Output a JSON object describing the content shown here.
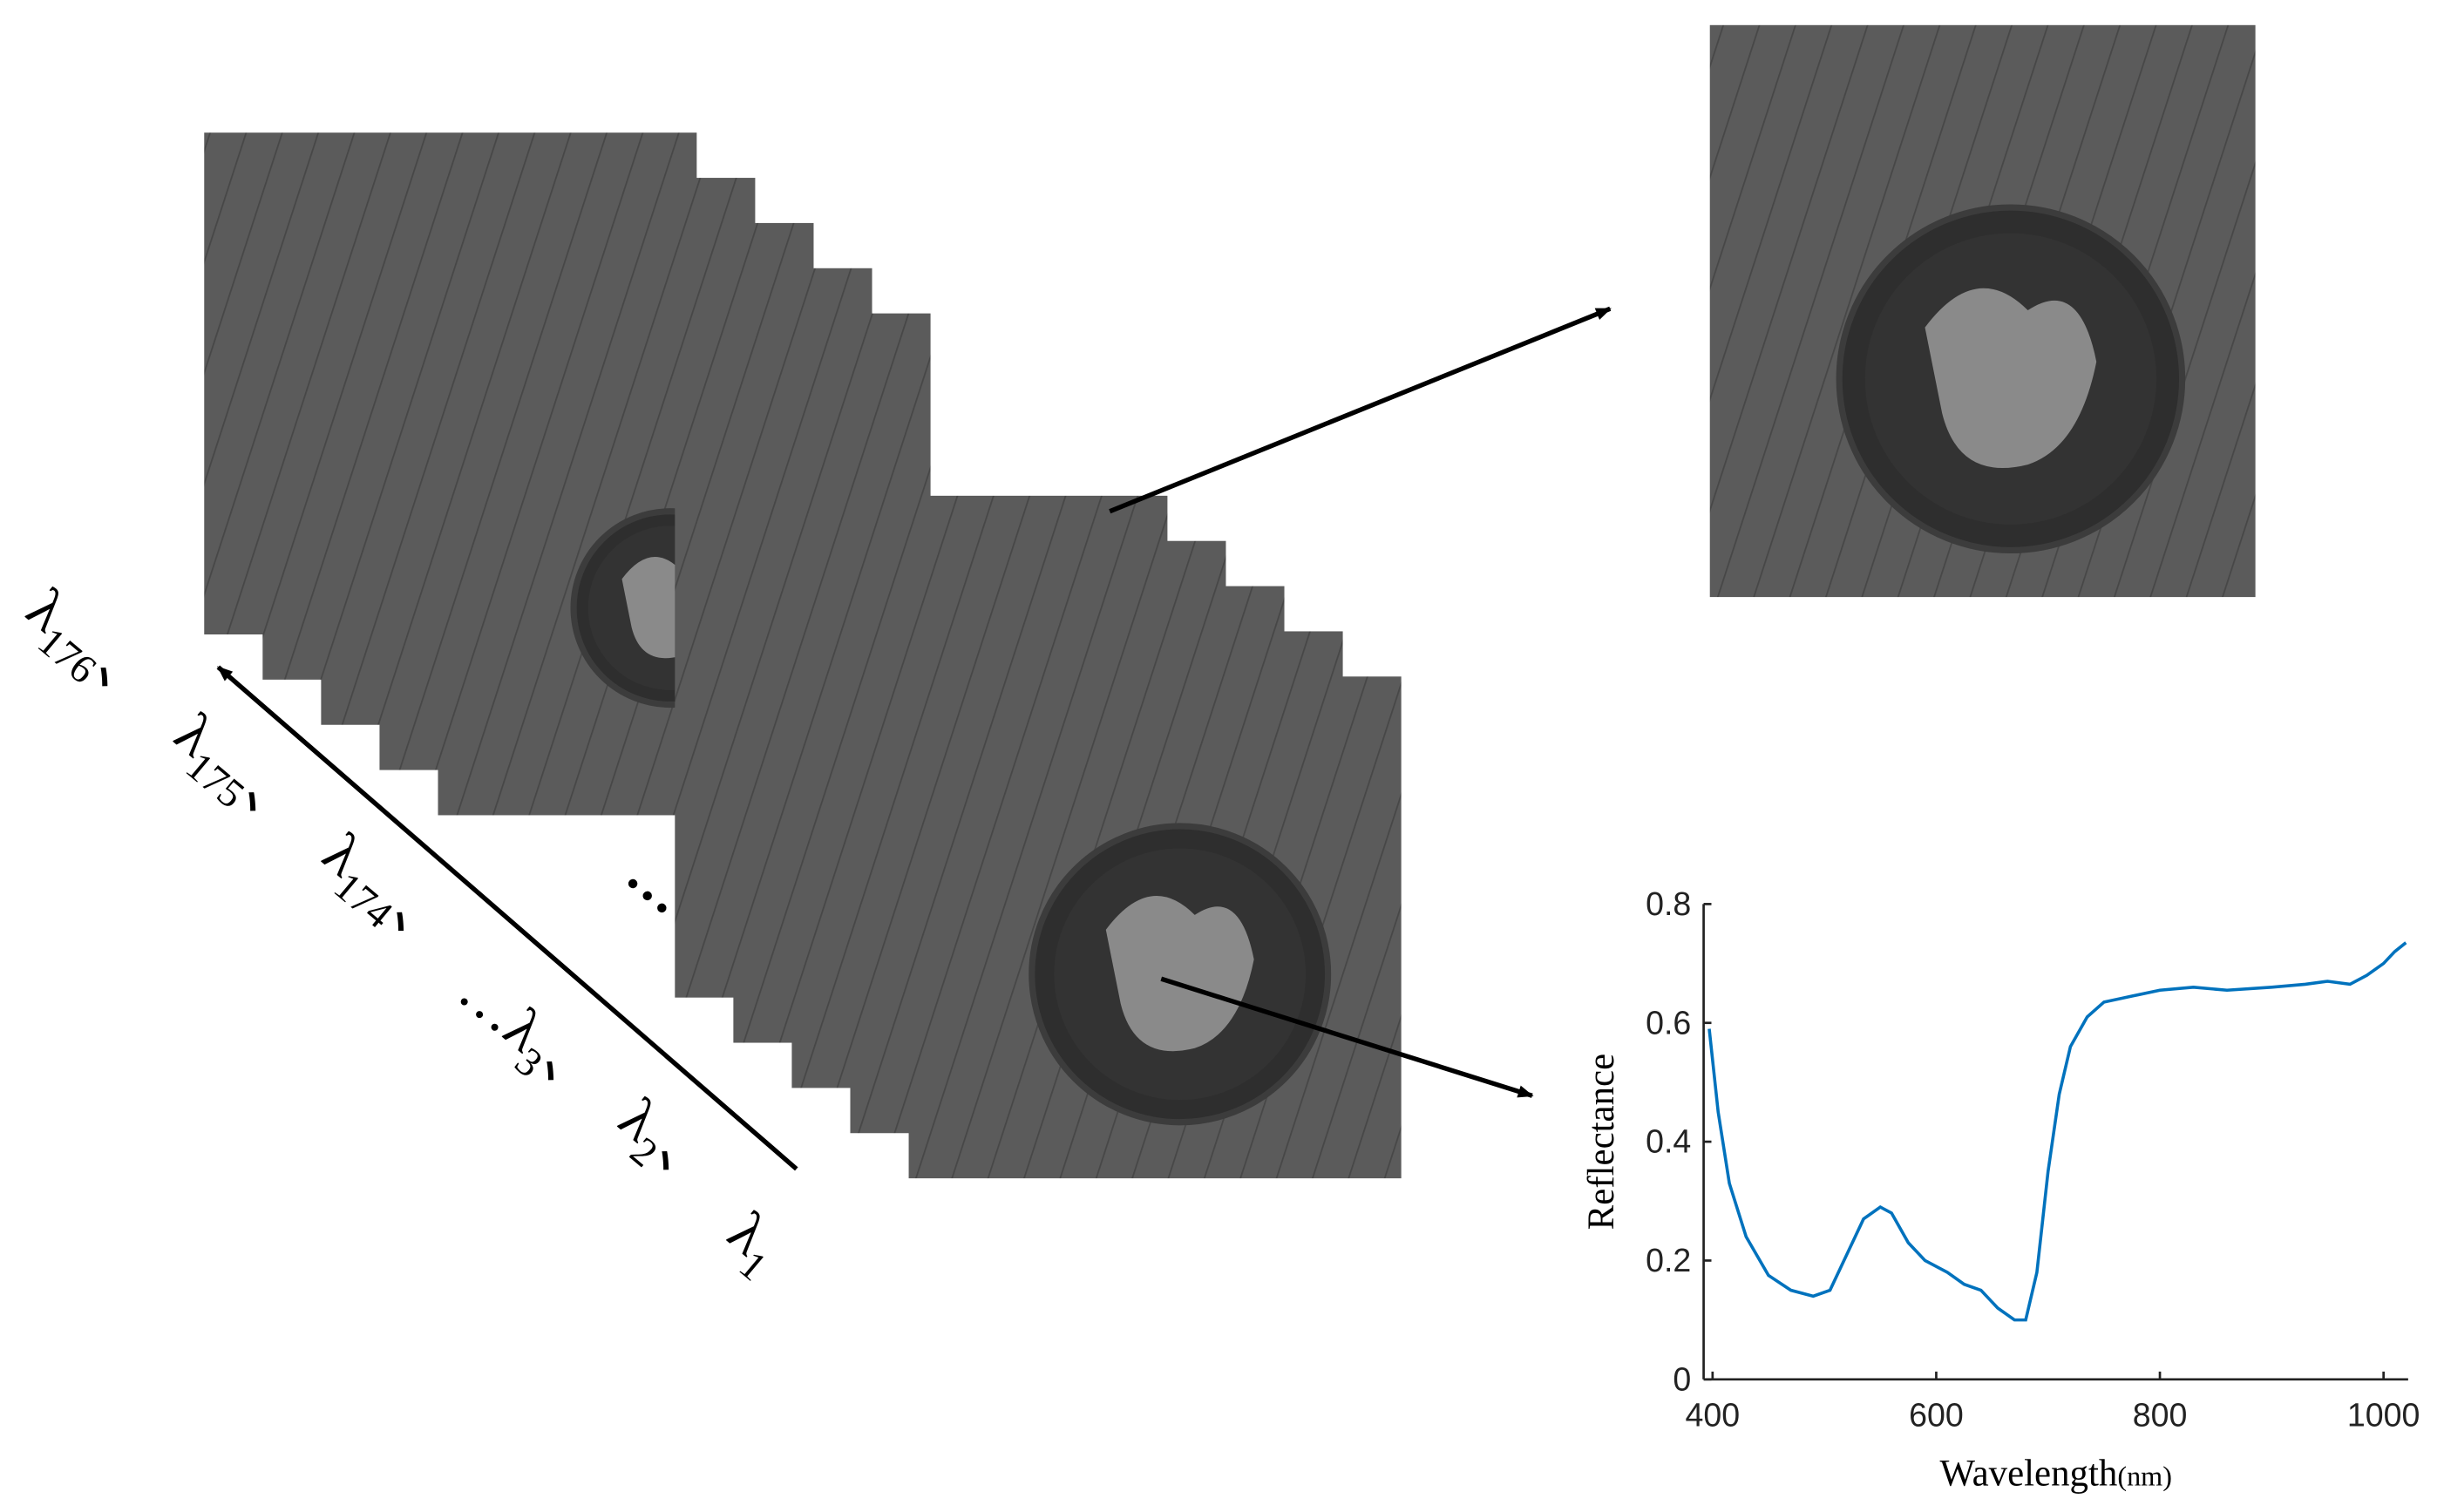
{
  "wavelength_labels": [
    {
      "base": "λ",
      "sub": "176",
      "sep": "、"
    },
    {
      "base": "λ",
      "sub": "175",
      "sep": "、"
    },
    {
      "base": "λ",
      "sub": "174",
      "sep": "、"
    },
    {
      "prefix": "…",
      "base": "λ",
      "sub": "3",
      "sep": "、"
    },
    {
      "base": "λ",
      "sub": "2",
      "sep": "、"
    },
    {
      "base": "λ",
      "sub": "1"
    }
  ],
  "stack_ellipsis": "…",
  "chart_data": {
    "type": "line",
    "ylabel": "Reflectance",
    "xlabel": "Wavelength",
    "xlabel_unit": "(nm)",
    "color": "#0072bd",
    "x": [
      397,
      405,
      415,
      430,
      450,
      470,
      490,
      505,
      520,
      535,
      550,
      560,
      575,
      590,
      610,
      625,
      640,
      655,
      670,
      680,
      690,
      700,
      710,
      720,
      735,
      750,
      775,
      800,
      830,
      860,
      900,
      930,
      950,
      970,
      985,
      1000,
      1010,
      1020
    ],
    "values": [
      0.59,
      0.45,
      0.33,
      0.24,
      0.175,
      0.15,
      0.14,
      0.15,
      0.21,
      0.27,
      0.29,
      0.28,
      0.23,
      0.2,
      0.18,
      0.16,
      0.15,
      0.12,
      0.1,
      0.1,
      0.18,
      0.35,
      0.48,
      0.56,
      0.61,
      0.635,
      0.645,
      0.655,
      0.66,
      0.655,
      0.66,
      0.665,
      0.67,
      0.665,
      0.68,
      0.7,
      0.72,
      0.735
    ],
    "xlim": [
      392,
      1022
    ],
    "ylim": [
      0,
      0.8
    ],
    "xticks": [
      400,
      600,
      800,
      1000
    ],
    "yticks": [
      0,
      0.2,
      0.4,
      0.6,
      0.8
    ]
  }
}
